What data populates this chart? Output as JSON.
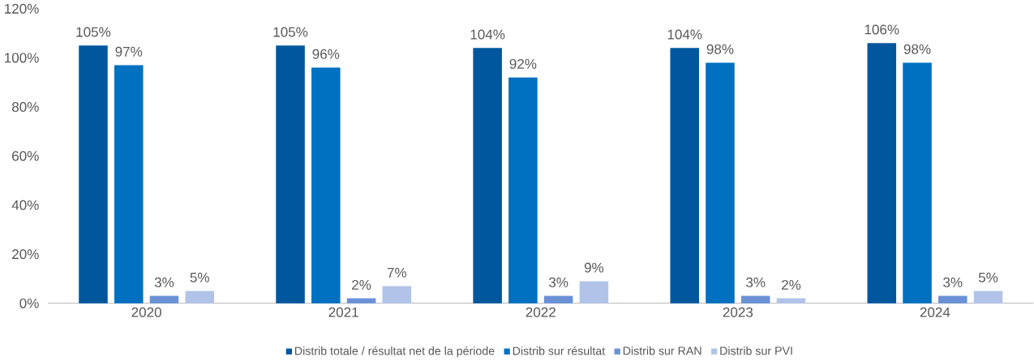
{
  "chart_data": {
    "type": "bar",
    "categories": [
      "2020",
      "2021",
      "2022",
      "2023",
      "2024"
    ],
    "series": [
      {
        "name": "Distrib totale / résultat net de la période",
        "color": "#00579e",
        "values": [
          105,
          105,
          104,
          104,
          106
        ],
        "value_labels": [
          "105%",
          "105%",
          "104%",
          "104%",
          "106%"
        ]
      },
      {
        "name": "Distrib sur résultat",
        "color": "#0070c0",
        "values": [
          97,
          96,
          92,
          98,
          98
        ],
        "value_labels": [
          "97%",
          "96%",
          "92%",
          "98%",
          "98%"
        ]
      },
      {
        "name": "Distrib sur RAN",
        "color": "#6a91d6",
        "values": [
          3,
          2,
          3,
          3,
          3
        ],
        "value_labels": [
          "3%",
          "2%",
          "3%",
          "3%",
          "3%"
        ]
      },
      {
        "name": "Distrib sur PVI",
        "color": "#b1c3e8",
        "values": [
          5,
          7,
          9,
          2,
          5
        ],
        "value_labels": [
          "5%",
          "7%",
          "9%",
          "2%",
          "5%"
        ]
      }
    ],
    "ylim": [
      0,
      120
    ],
    "yticks": [
      {
        "value": 0,
        "label": "0%"
      },
      {
        "value": 20,
        "label": "20%"
      },
      {
        "value": 40,
        "label": "40%"
      },
      {
        "value": 60,
        "label": "60%"
      },
      {
        "value": 80,
        "label": "80%"
      },
      {
        "value": 100,
        "label": "100%"
      },
      {
        "value": 120,
        "label": "120%"
      }
    ],
    "legend": "bottom"
  }
}
